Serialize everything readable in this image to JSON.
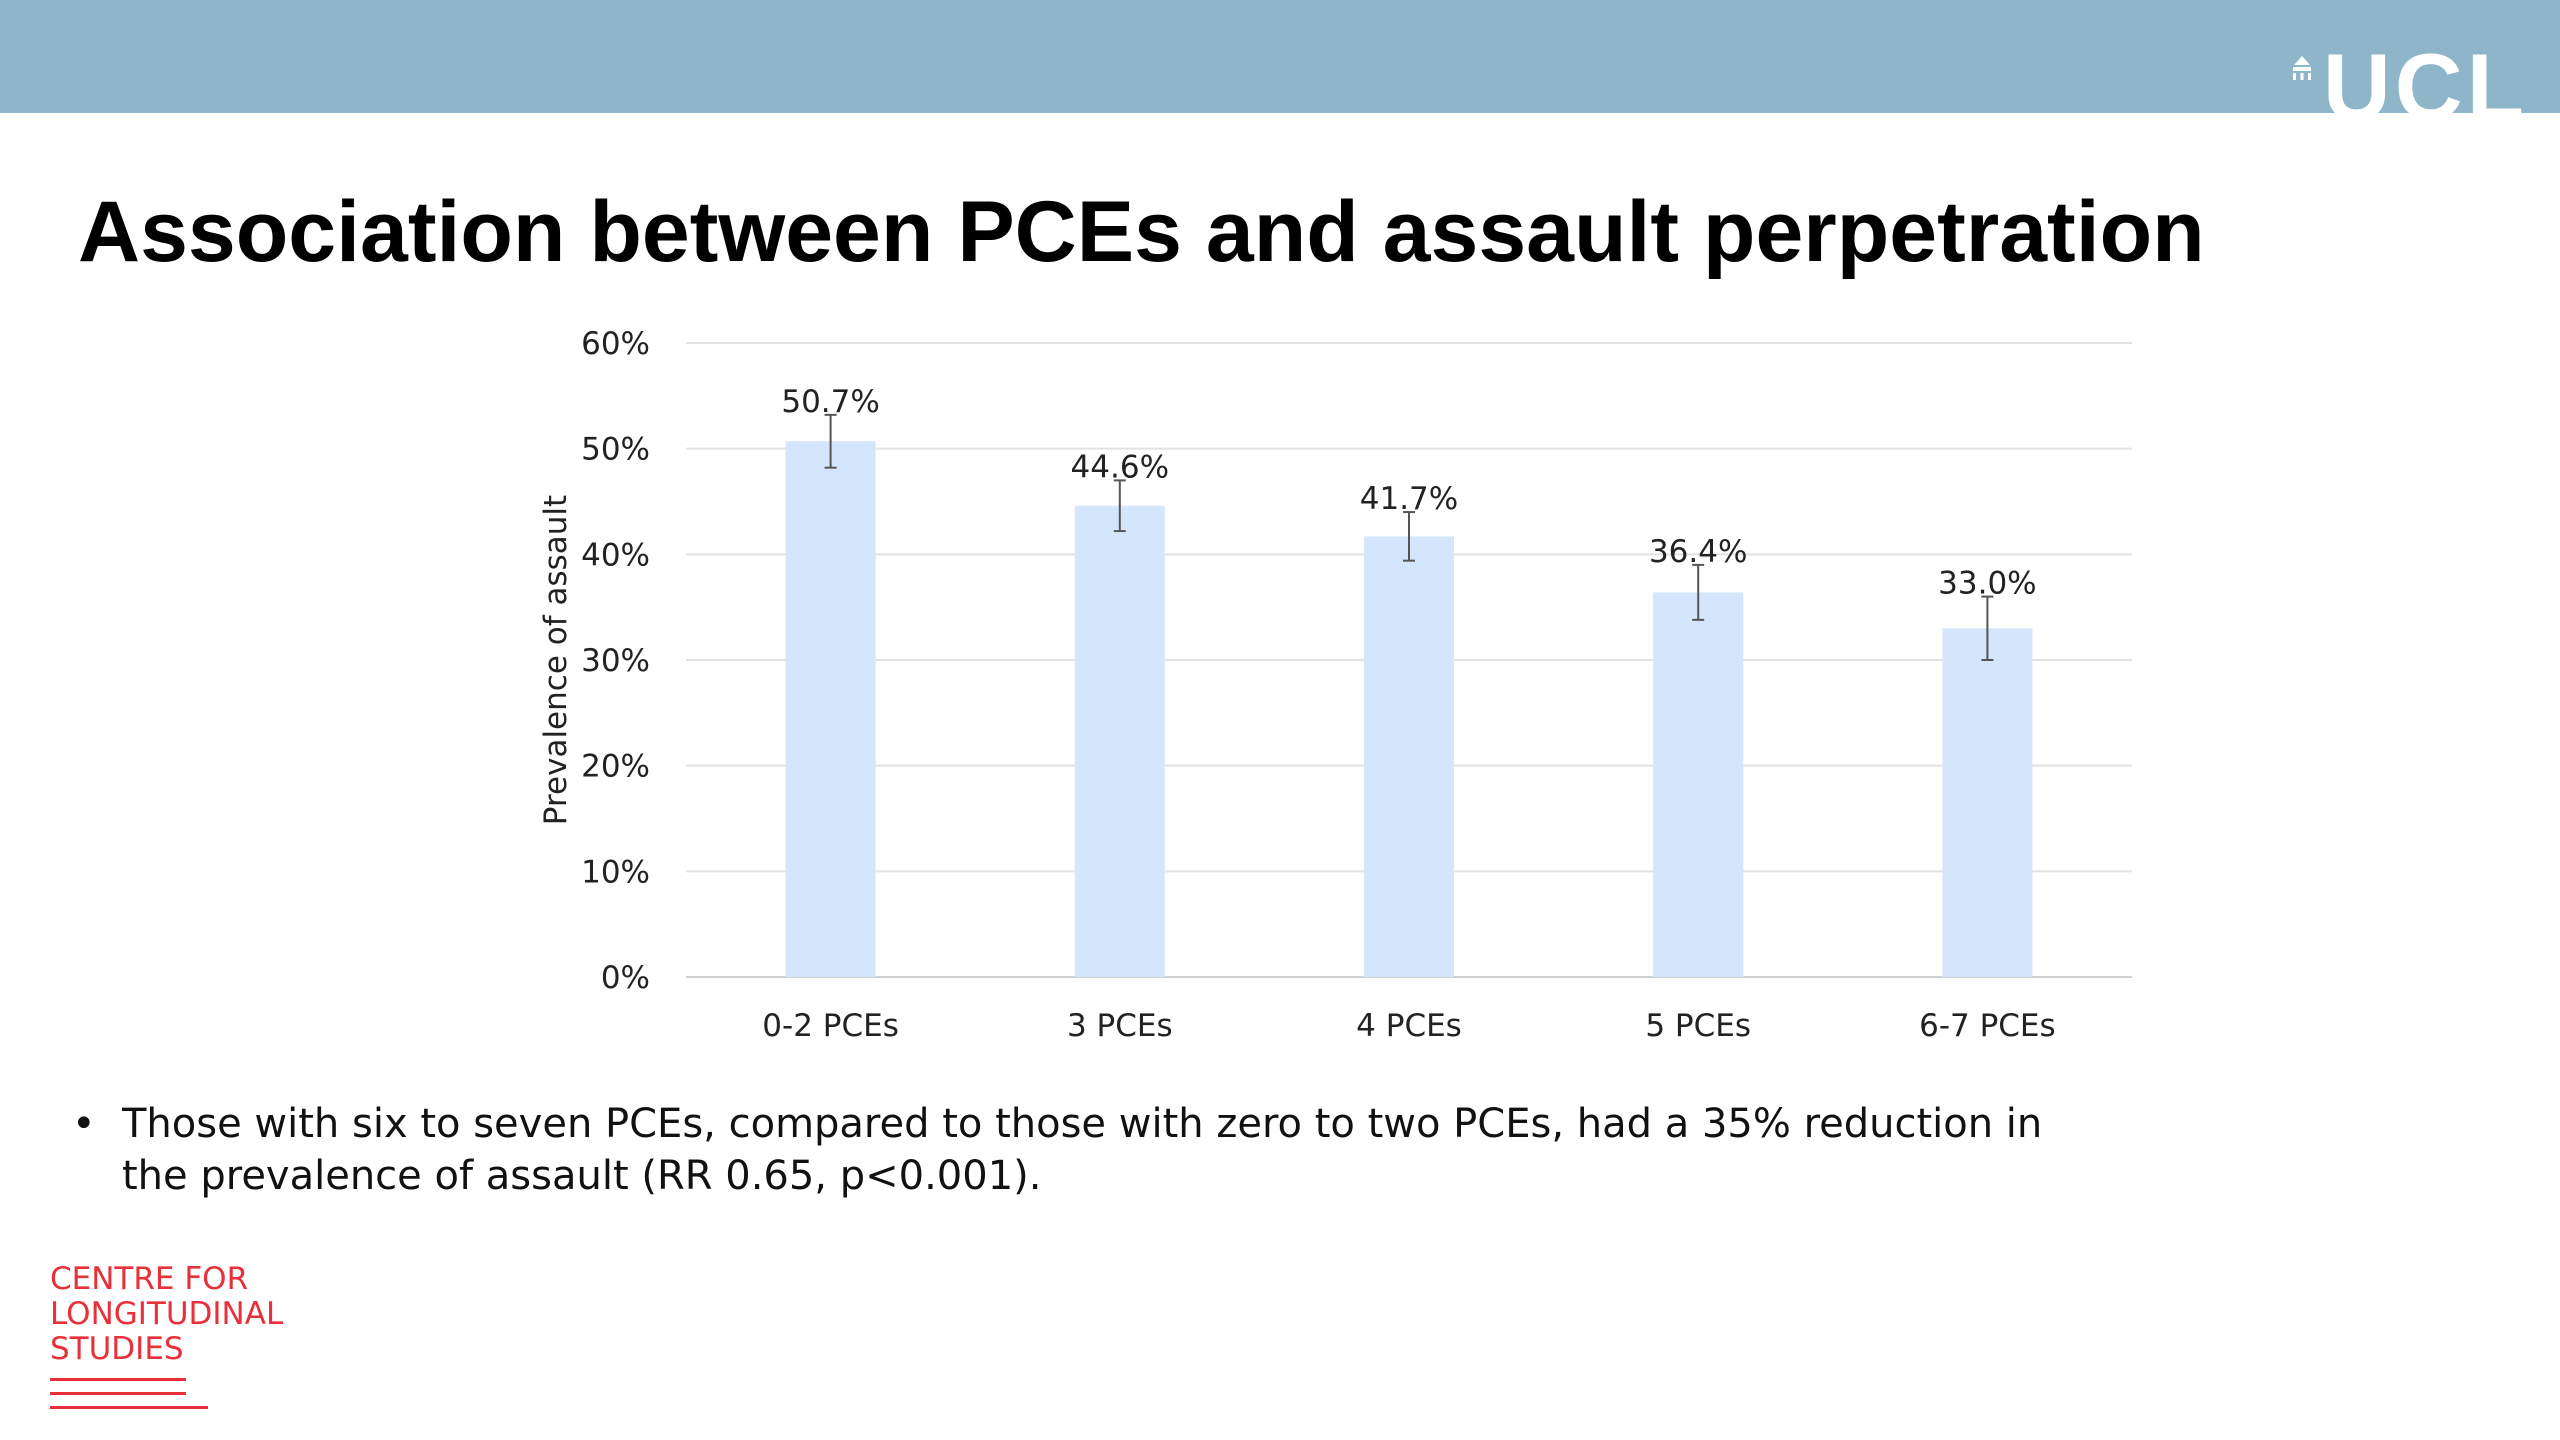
{
  "header": {
    "logo_text": "UCL",
    "bar_color": "#8fb5c9",
    "logo_icon": "ucl-dome-icon"
  },
  "page_title": "Association between PCEs and assault perpetration",
  "chart_data": {
    "type": "bar",
    "title": "",
    "xlabel": "",
    "ylabel": "Prevalence of assault",
    "categories": [
      "0-2 PCEs",
      "3 PCEs",
      "4 PCEs",
      "5 PCEs",
      "6-7 PCEs"
    ],
    "values": [
      50.7,
      44.6,
      41.7,
      36.4,
      33.0
    ],
    "data_labels": [
      "50.7%",
      "44.6%",
      "41.7%",
      "36.4%",
      "33.0%"
    ],
    "error_low": [
      48.2,
      42.2,
      39.4,
      33.8,
      30.0
    ],
    "error_high": [
      53.2,
      47.0,
      44.0,
      39.0,
      36.0
    ],
    "ylim": [
      0,
      60
    ],
    "yticks": [
      0,
      10,
      20,
      30,
      40,
      50,
      60
    ],
    "ytick_labels": [
      "0%",
      "10%",
      "20%",
      "30%",
      "40%",
      "50%",
      "60%"
    ],
    "grid": true,
    "bar_color": "#d4e6fb"
  },
  "bullets": [
    "Those with six to seven PCEs, compared to those with zero to two PCEs, had a 35% reduction in the prevalence of assault (RR 0.65, p<0.001)."
  ],
  "footer_logo": {
    "lines": [
      "CENTRE FOR",
      "LONGITUDINAL",
      "STUDIES"
    ],
    "color": "#e8303a"
  }
}
